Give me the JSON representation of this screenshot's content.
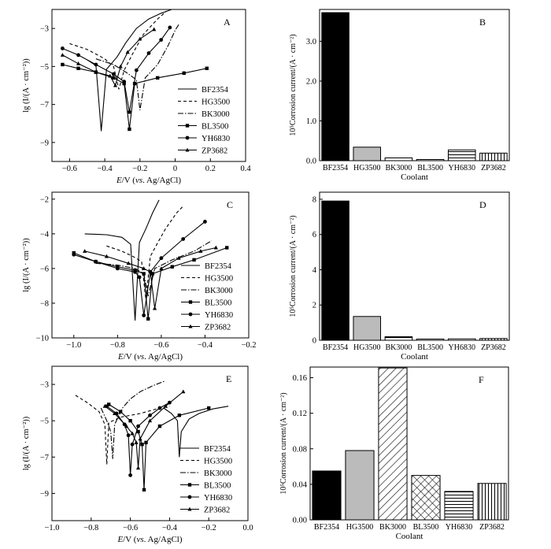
{
  "chart_data": [
    {
      "panel": "A",
      "type": "line",
      "ylabel": "lg (I/(A · cm⁻²))",
      "xlabel_italic": "E",
      "xlabel_rest": "/V (",
      "xlabel_vs": "vs",
      "xlabel_tail": ". Ag/AgCl)",
      "xlim": [
        -0.7,
        0.4
      ],
      "ylim": [
        -10,
        -2
      ],
      "xticks": [
        -0.6,
        -0.4,
        -0.2,
        0,
        0.2,
        0.4
      ],
      "xtick_labels": [
        "−0.6",
        "−0.4",
        "−0.2",
        "0",
        "0.2",
        "0.4"
      ],
      "yticks": [
        -9,
        -7,
        -5,
        -3
      ],
      "ytick_labels": [
        "−9",
        "−7",
        "−5",
        "−3"
      ],
      "legend": "right",
      "series": [
        {
          "name": "BF2354",
          "x": [
            -0.5,
            -0.45,
            -0.42,
            -0.39,
            -0.33,
            -0.28,
            -0.22,
            -0.15,
            -0.08,
            -0.02
          ],
          "y": [
            -4.65,
            -4.95,
            -8.4,
            -5.15,
            -4.5,
            -3.75,
            -3.0,
            -2.5,
            -2.2,
            -2.0
          ]
        },
        {
          "name": "HG3500",
          "x": [
            -0.6,
            -0.5,
            -0.4,
            -0.35,
            -0.32,
            -0.29,
            -0.24,
            -0.18,
            -0.1,
            -0.05
          ],
          "y": [
            -3.8,
            -4.1,
            -4.6,
            -5.0,
            -6.2,
            -5.2,
            -4.3,
            -3.3,
            -2.5,
            -2.1
          ]
        },
        {
          "name": "BK3000",
          "x": [
            -0.45,
            -0.35,
            -0.28,
            -0.22,
            -0.2,
            -0.17,
            -0.1,
            -0.04,
            0.0,
            0.02
          ],
          "y": [
            -4.6,
            -4.9,
            -5.3,
            -5.7,
            -7.3,
            -5.6,
            -4.9,
            -3.9,
            -3.1,
            -2.8
          ]
        },
        {
          "name": "BL3500",
          "x": [
            -0.64,
            -0.55,
            -0.45,
            -0.35,
            -0.29,
            -0.26,
            -0.23,
            -0.1,
            0.05,
            0.18
          ],
          "y": [
            -4.9,
            -5.1,
            -5.3,
            -5.6,
            -5.9,
            -8.3,
            -5.9,
            -5.6,
            -5.35,
            -5.1
          ]
        },
        {
          "name": "YH6830",
          "x": [
            -0.64,
            -0.55,
            -0.45,
            -0.35,
            -0.29,
            -0.26,
            -0.22,
            -0.15,
            -0.08,
            -0.03
          ],
          "y": [
            -4.05,
            -4.4,
            -4.9,
            -5.4,
            -5.8,
            -7.4,
            -5.2,
            -4.3,
            -3.6,
            -2.95
          ]
        },
        {
          "name": "ZP3682",
          "x": [
            -0.64,
            -0.55,
            -0.45,
            -0.37,
            -0.34,
            -0.31,
            -0.27,
            -0.2,
            -0.12
          ],
          "y": [
            -4.4,
            -4.85,
            -5.3,
            -5.5,
            -6.0,
            -5.0,
            -4.25,
            -3.55,
            -3.05
          ]
        }
      ]
    },
    {
      "panel": "B",
      "type": "bar",
      "ylabel": "10⁵Corrosion current/(A · cm⁻²)",
      "xlabel": "Coolant",
      "ylim": [
        0,
        3.8
      ],
      "yticks": [
        0,
        1,
        2,
        3
      ],
      "ytick_labels": [
        "0.0",
        "1.0",
        "2.0",
        "3.0"
      ],
      "categories": [
        "BF2354",
        "HG3500",
        "BK3000",
        "BL3500",
        "YH6830",
        "ZP3682"
      ],
      "values": [
        3.72,
        0.34,
        0.07,
        0.03,
        0.27,
        0.19
      ]
    },
    {
      "panel": "C",
      "type": "line",
      "ylabel": "lg (I/(A · cm⁻²))",
      "xlabel_italic": "E",
      "xlabel_rest": "/V (",
      "xlabel_vs": "vs",
      "xlabel_tail": ". Ag/AgCl)",
      "xlim": [
        -1.1,
        -0.2
      ],
      "ylim": [
        -10,
        -1.6
      ],
      "xticks": [
        -1.0,
        -0.8,
        -0.6,
        -0.4,
        -0.2
      ],
      "xtick_labels": [
        "−1.0",
        "−0.8",
        "−0.6",
        "−0.4",
        "−0.2"
      ],
      "yticks": [
        -10,
        -8,
        -6,
        -4,
        -2
      ],
      "ytick_labels": [
        "−10",
        "−8",
        "−6",
        "−4",
        "−2"
      ],
      "legend": "right",
      "series": [
        {
          "name": "BF2354",
          "x": [
            -0.95,
            -0.85,
            -0.78,
            -0.74,
            -0.72,
            -0.7,
            -0.67,
            -0.64,
            -0.61
          ],
          "y": [
            -4.0,
            -4.05,
            -4.2,
            -4.6,
            -9.0,
            -4.5,
            -3.7,
            -2.8,
            -2.05
          ]
        },
        {
          "name": "HG3500",
          "x": [
            -0.85,
            -0.78,
            -0.73,
            -0.69,
            -0.67,
            -0.65,
            -0.62,
            -0.58,
            -0.53,
            -0.5
          ],
          "y": [
            -4.7,
            -5.0,
            -5.3,
            -5.6,
            -7.8,
            -5.3,
            -4.6,
            -3.7,
            -2.8,
            -2.4
          ]
        },
        {
          "name": "BK3000",
          "x": [
            -0.9,
            -0.8,
            -0.72,
            -0.68,
            -0.66,
            -0.63,
            -0.55,
            -0.45,
            -0.37
          ],
          "y": [
            -5.7,
            -5.8,
            -6.0,
            -6.3,
            -7.6,
            -6.0,
            -5.5,
            -5.0,
            -4.4
          ]
        },
        {
          "name": "BL3500",
          "x": [
            -1.0,
            -0.9,
            -0.8,
            -0.72,
            -0.68,
            -0.66,
            -0.64,
            -0.55,
            -0.45,
            -0.3
          ],
          "y": [
            -5.1,
            -5.6,
            -5.9,
            -6.1,
            -6.3,
            -8.9,
            -6.3,
            -5.9,
            -5.5,
            -4.8
          ]
        },
        {
          "name": "YH6830",
          "x": [
            -1.0,
            -0.9,
            -0.8,
            -0.72,
            -0.7,
            -0.68,
            -0.65,
            -0.6,
            -0.5,
            -0.4
          ],
          "y": [
            -5.2,
            -5.6,
            -6.0,
            -6.2,
            -6.5,
            -8.7,
            -6.2,
            -5.4,
            -4.3,
            -3.3
          ]
        },
        {
          "name": "ZP3682",
          "x": [
            -0.95,
            -0.85,
            -0.75,
            -0.68,
            -0.65,
            -0.63,
            -0.6,
            -0.52,
            -0.42,
            -0.35
          ],
          "y": [
            -5.0,
            -5.3,
            -5.7,
            -6.0,
            -6.2,
            -8.3,
            -6.0,
            -5.4,
            -5.0,
            -4.8
          ]
        }
      ]
    },
    {
      "panel": "D",
      "type": "bar",
      "ylabel": "10⁵Corrosion current/(A · cm⁻²)",
      "xlabel": "Coolant",
      "ylim": [
        0,
        8.4
      ],
      "yticks": [
        0,
        2,
        4,
        6,
        8
      ],
      "ytick_labels": [
        "0",
        "2",
        "4",
        "6",
        "8"
      ],
      "categories": [
        "BF2354",
        "HG3500",
        "BK3000",
        "BL3500",
        "YH6830",
        "ZP3682"
      ],
      "values": [
        7.9,
        1.35,
        0.2,
        0.07,
        0.08,
        0.1
      ]
    },
    {
      "panel": "E",
      "type": "line",
      "ylabel": "lg (I/(A · cm⁻²))",
      "xlabel_italic": "E",
      "xlabel_rest": "/V (",
      "xlabel_vs": "vs",
      "xlabel_tail": ". Ag/AgCl)",
      "xlim": [
        -1.0,
        0.0
      ],
      "ylim": [
        -10.5,
        -2
      ],
      "xticks": [
        -1.0,
        -0.8,
        -0.6,
        -0.4,
        -0.2,
        0.0
      ],
      "xtick_labels": [
        "−1.0",
        "−0.8",
        "−0.6",
        "−0.4",
        "−0.2",
        "0.0"
      ],
      "yticks": [
        -9,
        -7,
        -5,
        -3
      ],
      "ytick_labels": [
        "−9",
        "−7",
        "−5",
        "−3"
      ],
      "legend": "right",
      "series": [
        {
          "name": "BF2354",
          "x": [
            -0.43,
            -0.39,
            -0.36,
            -0.35,
            -0.34,
            -0.3,
            -0.25,
            -0.18,
            -0.1
          ],
          "y": [
            -4.3,
            -4.6,
            -5.0,
            -7.0,
            -5.6,
            -4.9,
            -4.6,
            -4.35,
            -4.2
          ]
        },
        {
          "name": "HG3500",
          "x": [
            -0.88,
            -0.82,
            -0.76,
            -0.73,
            -0.72,
            -0.71,
            -0.65,
            -0.55,
            -0.45,
            -0.4
          ],
          "y": [
            -3.6,
            -4.0,
            -4.5,
            -5.2,
            -7.4,
            -5.1,
            -4.8,
            -4.6,
            -4.3,
            -4.2
          ]
        },
        {
          "name": "BK3000",
          "x": [
            -0.75,
            -0.72,
            -0.7,
            -0.69,
            -0.68,
            -0.64,
            -0.6,
            -0.55,
            -0.48,
            -0.42
          ],
          "y": [
            -4.3,
            -5.0,
            -5.6,
            -7.1,
            -5.2,
            -4.3,
            -3.8,
            -3.4,
            -3.05,
            -2.8
          ]
        },
        {
          "name": "BL3500",
          "x": [
            -0.71,
            -0.65,
            -0.6,
            -0.56,
            -0.54,
            -0.53,
            -0.52,
            -0.45,
            -0.35,
            -0.2
          ],
          "y": [
            -4.1,
            -4.5,
            -5.0,
            -5.6,
            -6.3,
            -8.8,
            -6.2,
            -5.3,
            -4.7,
            -4.3
          ]
        },
        {
          "name": "YH6830",
          "x": [
            -0.72,
            -0.67,
            -0.63,
            -0.61,
            -0.6,
            -0.59,
            -0.56,
            -0.5,
            -0.45,
            -0.4
          ],
          "y": [
            -4.2,
            -4.6,
            -5.2,
            -5.8,
            -8.0,
            -6.3,
            -5.3,
            -4.7,
            -4.3,
            -4.0
          ]
        },
        {
          "name": "ZP3682",
          "x": [
            -0.73,
            -0.68,
            -0.62,
            -0.59,
            -0.57,
            -0.56,
            -0.55,
            -0.5,
            -0.42,
            -0.33
          ],
          "y": [
            -4.2,
            -4.6,
            -5.3,
            -5.7,
            -6.2,
            -7.6,
            -6.0,
            -5.0,
            -4.2,
            -3.4
          ]
        }
      ]
    },
    {
      "panel": "F",
      "type": "bar",
      "ylabel": "10⁵Corrosion current/(A · cm⁻²)",
      "xlabel": "Coolant",
      "ylim": [
        0,
        0.172
      ],
      "yticks": [
        0,
        0.04,
        0.08,
        0.12,
        0.16
      ],
      "ytick_labels": [
        "0.00",
        "0.04",
        "0.08",
        "0.12",
        "0.16"
      ],
      "categories": [
        "BF2354",
        "HG3500",
        "BK3000",
        "BL3500",
        "YH6830",
        "ZP3682"
      ],
      "values": [
        0.055,
        0.078,
        0.171,
        0.05,
        0.032,
        0.041
      ]
    }
  ]
}
